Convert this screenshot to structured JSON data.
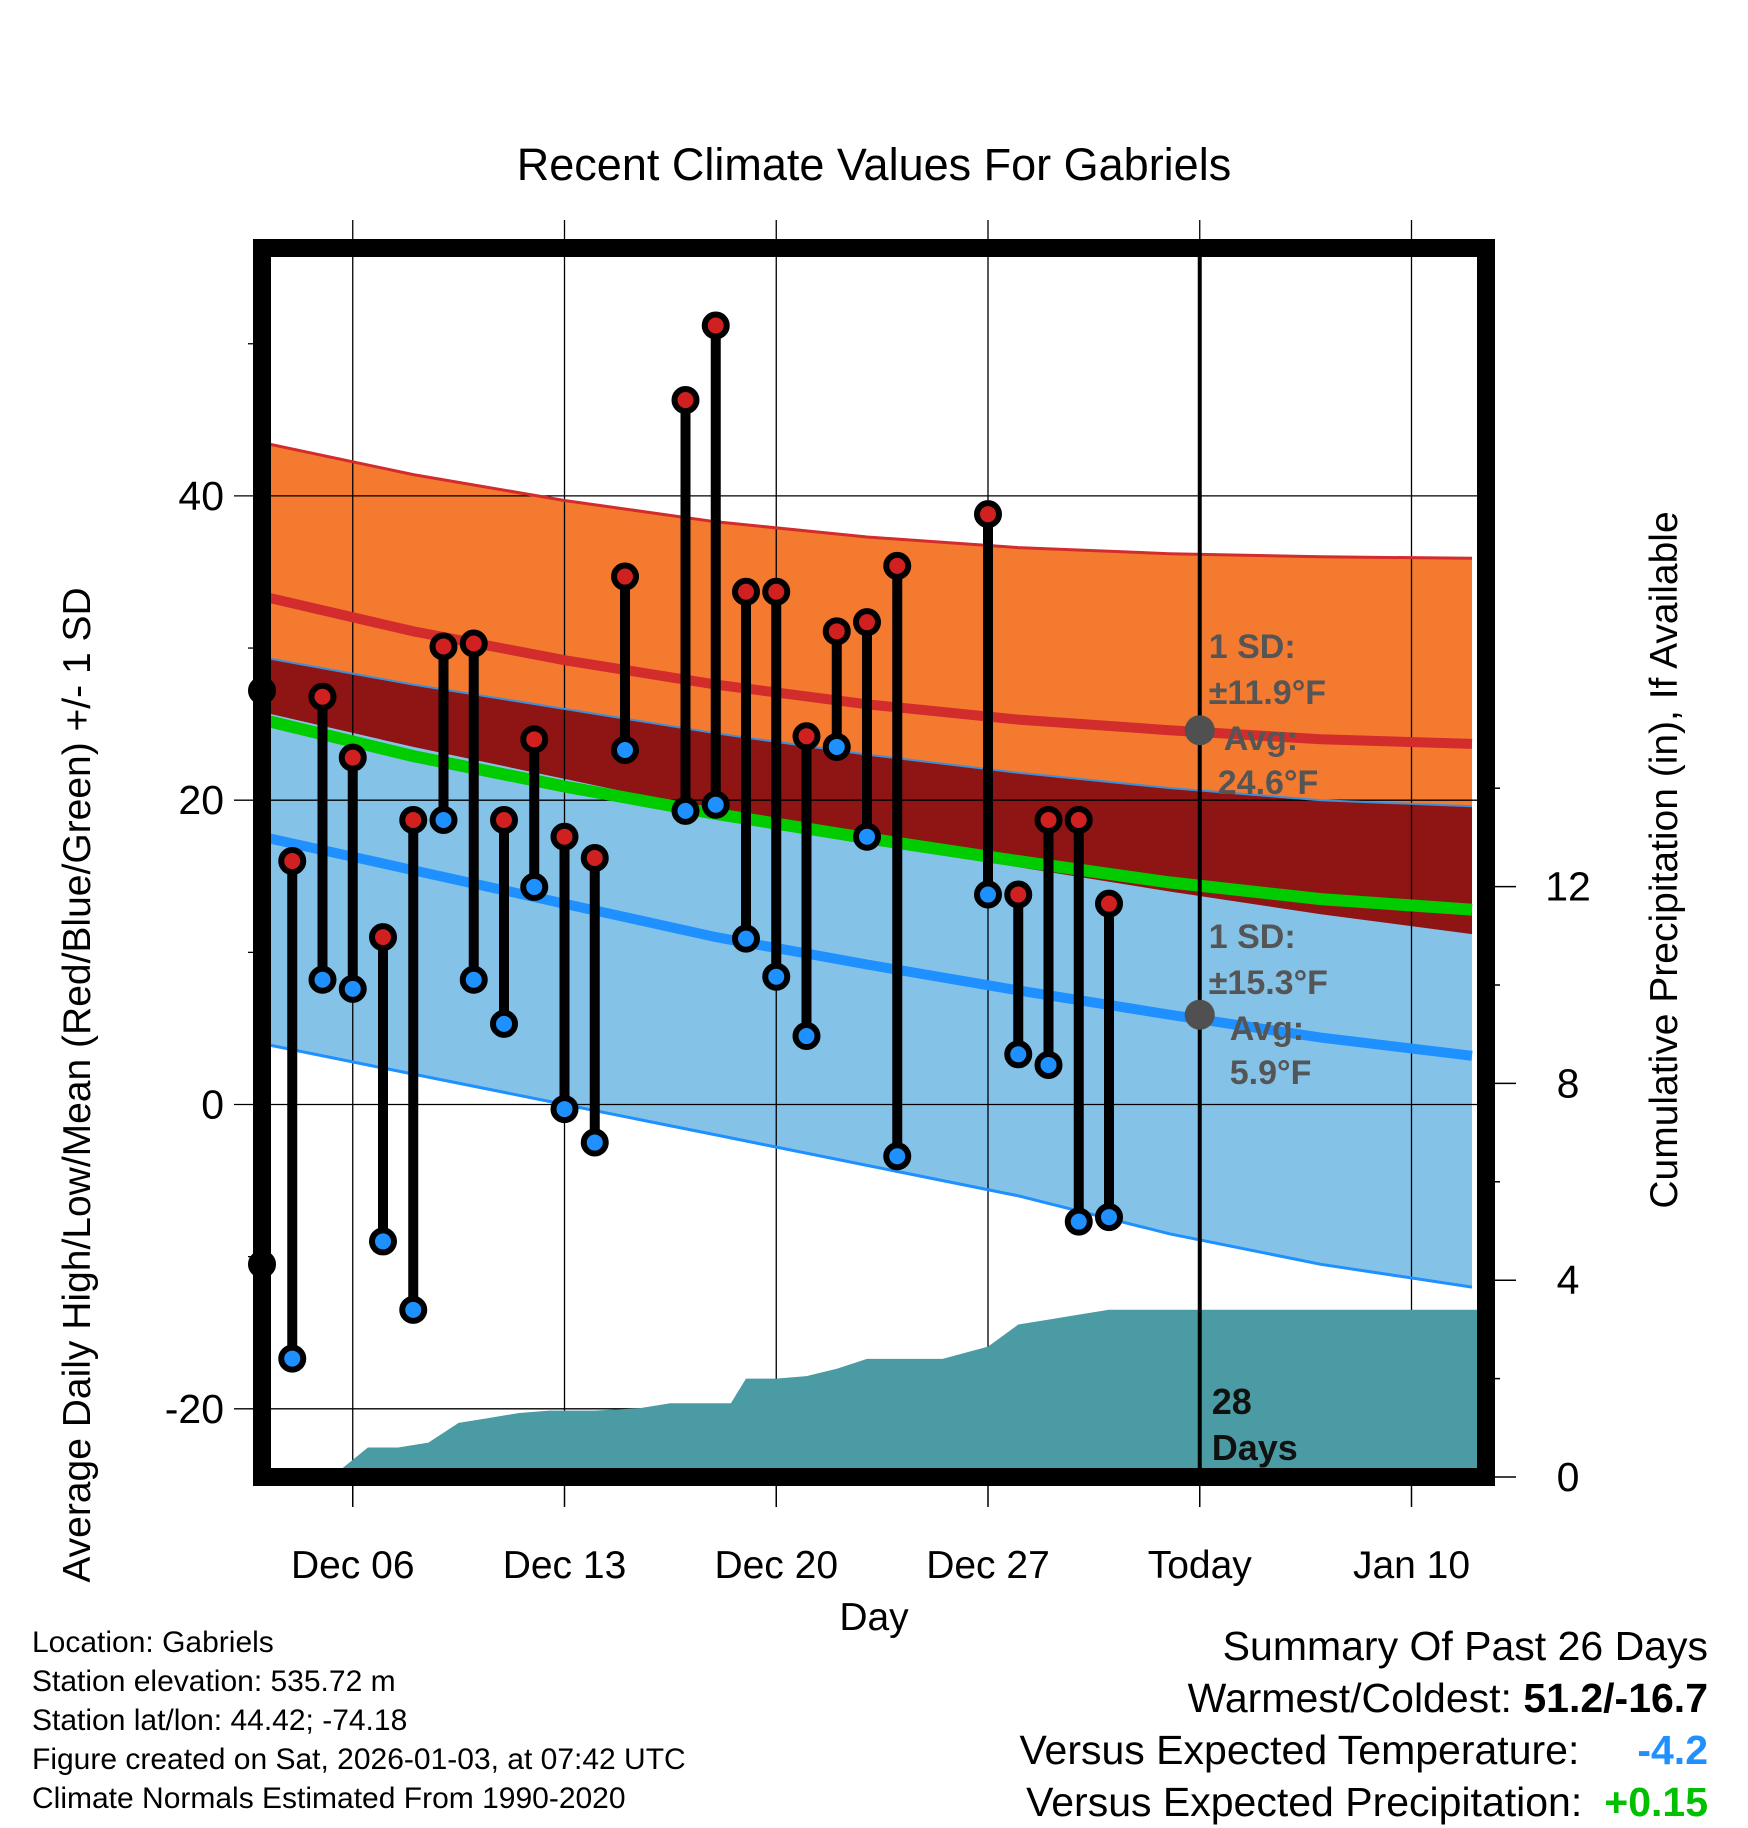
{
  "chart_data": {
    "type": "line",
    "title": "Recent Climate Values For Gabriels",
    "xlabel": "Day",
    "ylabel": "Average Daily High/Low/Mean (Red/Blue/Green) +/- 1 SD",
    "y2label": "Cumulative Precipitation (in), If Available",
    "x_range_days": [
      0,
      40.5
    ],
    "x_ticks": [
      {
        "day": 3,
        "label": "Dec 06"
      },
      {
        "day": 10,
        "label": "Dec 13"
      },
      {
        "day": 17,
        "label": "Dec 20"
      },
      {
        "day": 24,
        "label": "Dec 27"
      },
      {
        "day": 31,
        "label": "Today"
      },
      {
        "day": 38,
        "label": "Jan 10"
      }
    ],
    "ylim": [
      -24,
      57
    ],
    "y_ticks": [
      -20,
      0,
      20,
      40
    ],
    "y2lim": [
      0,
      24.3
    ],
    "y2_ticks": [
      0,
      4,
      8,
      12
    ],
    "normals": {
      "days": [
        0,
        5,
        10,
        15,
        20,
        25,
        30,
        35,
        40
      ],
      "high_avg": [
        33.4,
        31.1,
        29.2,
        27.6,
        26.3,
        25.3,
        24.6,
        24.0,
        23.7
      ],
      "high_plus_sd": [
        43.5,
        41.4,
        39.7,
        38.3,
        37.3,
        36.6,
        36.2,
        36.0,
        35.9
      ],
      "high_minus_sd": [
        29.4,
        27.6,
        26.0,
        24.4,
        23.0,
        21.8,
        20.8,
        20.0,
        19.6
      ],
      "low_avg": [
        17.6,
        15.4,
        13.2,
        11.0,
        9.2,
        7.5,
        5.9,
        4.4,
        3.2
      ],
      "low_plus_sd": [
        25.8,
        23.5,
        21.4,
        19.3,
        17.4,
        15.6,
        14.0,
        12.5,
        11.2
      ],
      "low_minus_sd": [
        4.0,
        2.0,
        0.0,
        -2.0,
        -4.0,
        -6.0,
        -8.5,
        -10.5,
        -12.0
      ],
      "mean_avg": [
        25.3,
        22.9,
        20.9,
        19.1,
        17.5,
        16.0,
        14.6,
        13.5,
        12.8
      ]
    },
    "high_annotation": {
      "sd_label": "1 SD:",
      "sd_value": "±11.9°F",
      "avg_label": "Avg:",
      "avg_value": "24.6°F",
      "avg": 24.6
    },
    "low_annotation": {
      "sd_label": "1 SD:",
      "sd_value": "±15.3°F",
      "avg_label": "Avg:",
      "avg_value": "5.9°F",
      "avg": 5.9
    },
    "series": [
      {
        "name": "Daily High",
        "days": [
          0,
          1,
          2,
          3,
          4,
          5,
          6,
          7,
          8,
          9,
          10,
          11,
          12,
          14,
          15,
          16,
          17,
          18,
          19,
          20,
          21,
          24,
          25,
          26,
          27,
          28,
          29
        ],
        "values": [
          27.2,
          16.0,
          26.8,
          22.8,
          11.0,
          18.7,
          30.1,
          30.3,
          18.7,
          24.0,
          17.6,
          16.2,
          34.7,
          46.3,
          51.2,
          33.7,
          33.7,
          24.2,
          31.1,
          31.7,
          35.4,
          38.8,
          13.8,
          18.7,
          18.7,
          13.2,
          null
        ]
      },
      {
        "name": "Daily Low",
        "days": [
          0,
          1,
          2,
          3,
          4,
          5,
          6,
          7,
          8,
          9,
          10,
          11,
          12,
          14,
          15,
          16,
          17,
          18,
          19,
          20,
          21,
          24,
          25,
          26,
          27,
          28,
          29
        ],
        "values": [
          -10.5,
          -16.7,
          8.2,
          7.6,
          -9.0,
          -13.5,
          18.7,
          8.2,
          5.3,
          14.3,
          -0.3,
          -2.5,
          23.3,
          19.3,
          19.7,
          10.9,
          8.4,
          4.5,
          23.5,
          17.6,
          -3.4,
          13.8,
          3.3,
          2.6,
          -7.7,
          -7.4,
          null
        ]
      },
      {
        "name": "Cumulative Precipitation (in)",
        "days": [
          0,
          1.5,
          2,
          2.5,
          3.5,
          4.5,
          5.5,
          6.5,
          7.5,
          8.5,
          9.5,
          11,
          12.5,
          13.5,
          15.5,
          16,
          17,
          18,
          19,
          20,
          21,
          22.5,
          24,
          25,
          26,
          27,
          28,
          29,
          31,
          40.5
        ],
        "values": [
          0,
          0,
          0.05,
          0.1,
          0.6,
          0.6,
          0.7,
          1.1,
          1.2,
          1.3,
          1.35,
          1.35,
          1.4,
          1.5,
          1.5,
          2.0,
          2.0,
          2.05,
          2.2,
          2.4,
          2.4,
          2.4,
          2.65,
          3.1,
          3.2,
          3.3,
          3.4,
          3.4,
          3.4,
          3.4
        ]
      }
    ],
    "today_label_number": "28",
    "today_label_text": "Days"
  },
  "footer": {
    "location": "Location: Gabriels",
    "elevation": "Station elevation: 535.72 m",
    "latlon": "Station lat/lon: 44.42; -74.18",
    "created": "Figure created on Sat, 2026-01-03, at 07:42 UTC",
    "normals": "Climate Normals Estimated From 1990-2020"
  },
  "summary": {
    "title": "Summary Of Past 26 Days",
    "warm_cold_label": "Warmest/Coldest:",
    "warm_cold_value": "51.2/-16.7",
    "temp_label": "Versus Expected Temperature:",
    "temp_value": "-4.2",
    "precip_label": "Versus Expected Precipitation:",
    "precip_value": "+0.15"
  },
  "colors": {
    "high_band": "#f47a30",
    "high_line": "#d22c2c",
    "mid_band": "#8f1414",
    "low_band": "#85c2e8",
    "low_line": "#1e90ff",
    "mean_line": "#00cc00",
    "precip": "#4a9ba3",
    "high_dot": "#d02020",
    "low_dot": "#1e90ff",
    "annotation": "#555555"
  }
}
